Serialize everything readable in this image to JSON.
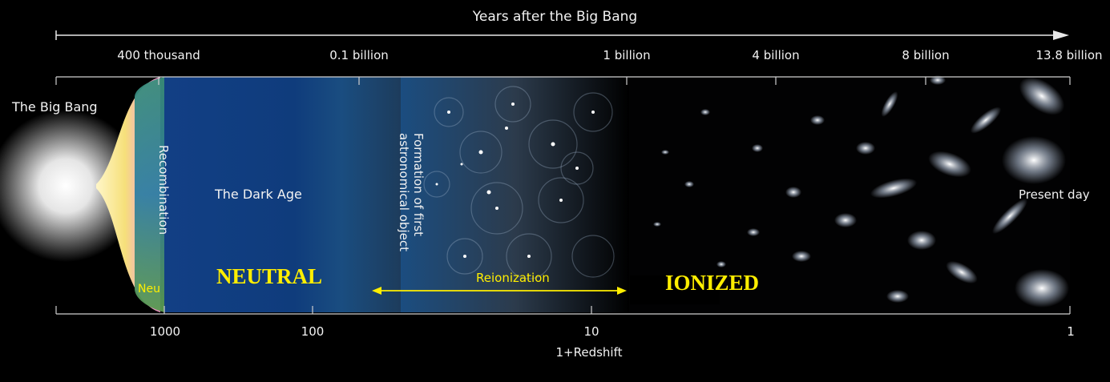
{
  "header": {
    "title": "Years after the Big Bang"
  },
  "time_ticks": [
    "400 thousand",
    "0.1 billion",
    "1 billion",
    "4 billion",
    "8 billion",
    "13.8 billion"
  ],
  "redshift_ticks": [
    "1000",
    "100",
    "10",
    "1"
  ],
  "redshift_axis_label": "1+Redshift",
  "epochs": {
    "big_bang": "The Big Bang",
    "recombination": "Recombination",
    "neutral_partial": "Neu",
    "dark_age": "The Dark Age",
    "first_objects_line1": "Formation of first",
    "first_objects_line2": "astronomical object",
    "present_day": "Present day"
  },
  "regions": {
    "neutral": "NEUTRAL",
    "ionized": "IONIZED",
    "reionization": "Reionization"
  },
  "colors": {
    "accent_yellow": "#ffee00",
    "dark_age_blue": "#0f3c7c",
    "background": "#000000"
  }
}
